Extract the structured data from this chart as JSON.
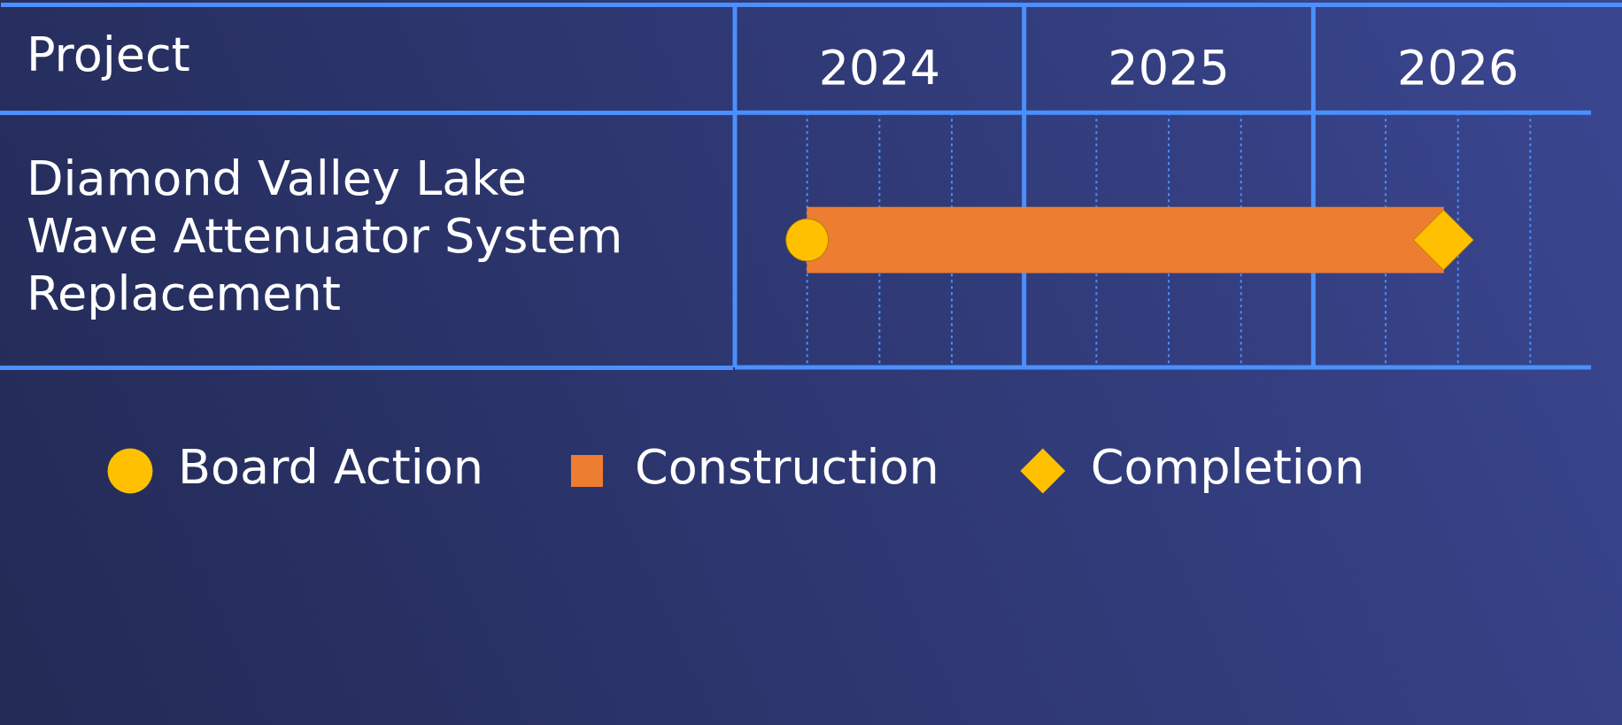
{
  "chart_data": {
    "type": "bar",
    "orientation": "horizontal",
    "ylabel": "Project",
    "categories": [
      "Diamond Valley Lake Wave Attenuator System Replacement"
    ],
    "series": [
      {
        "name": "Board Action",
        "type": "scatter",
        "marker": "circle",
        "color": "#ffc000",
        "values": [
          2024.25
        ]
      },
      {
        "name": "Construction",
        "type": "bar",
        "color": "#ed7d31",
        "base": [
          2024.25
        ],
        "values": [
          2.2
        ]
      },
      {
        "name": "Completion",
        "type": "scatter",
        "marker": "diamond",
        "color": "#ffc000",
        "values": [
          2026.45
        ]
      }
    ],
    "xlim": [
      2024,
      2026.96
    ],
    "xticks": [
      {
        "value": 2024.25,
        "label": null
      },
      {
        "value": 2024.5,
        "label": "2024"
      },
      {
        "value": 2024.75,
        "label": null
      },
      {
        "value": 2025,
        "label": null
      },
      {
        "value": 2025.25,
        "label": null
      },
      {
        "value": 2025.5,
        "label": "2025"
      },
      {
        "value": 2025.75,
        "label": null
      },
      {
        "value": 2026,
        "label": null
      },
      {
        "value": 2026.25,
        "label": null
      },
      {
        "value": 2026.5,
        "label": "2026"
      },
      {
        "value": 2026.75,
        "label": null
      }
    ],
    "grid": "x",
    "legend": "bottom"
  }
}
